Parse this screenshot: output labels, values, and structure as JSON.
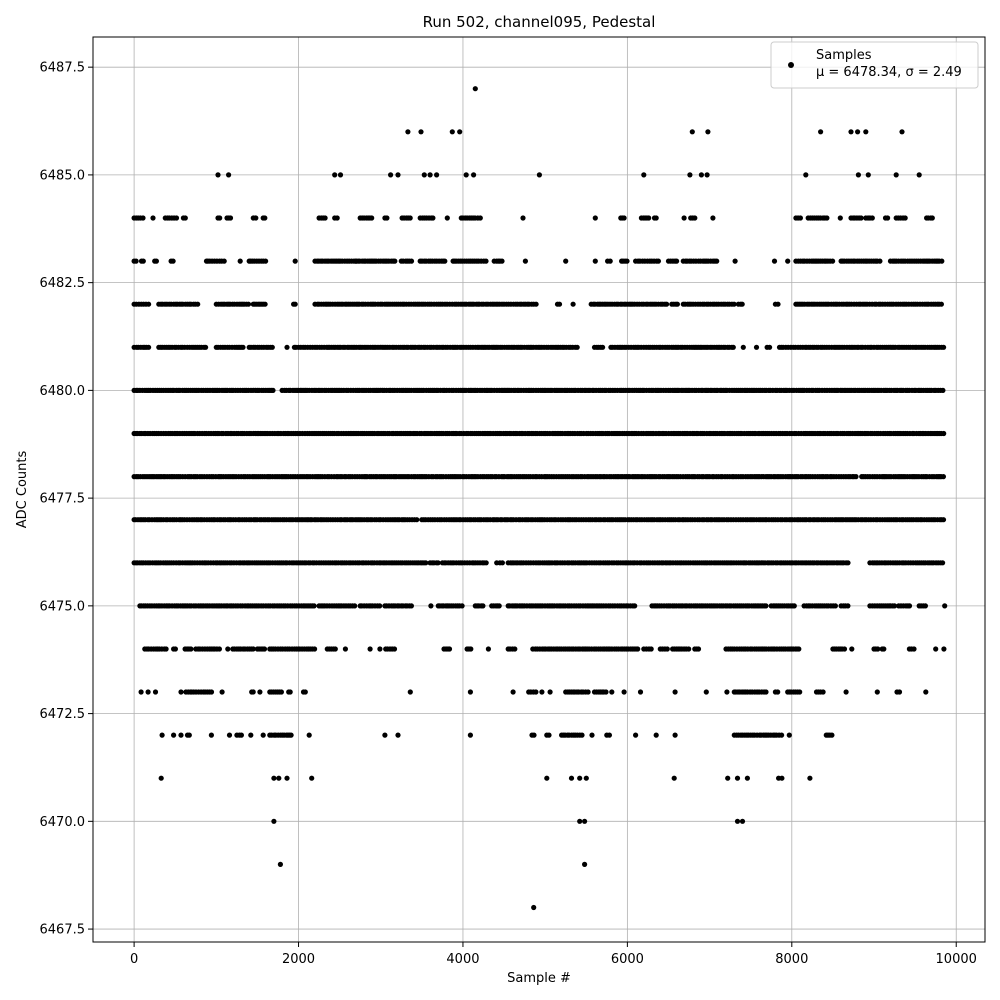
{
  "chart_data": {
    "type": "scatter",
    "title": "Run 502, channel095, Pedestal",
    "xlabel": "Sample #",
    "ylabel": "ADC Counts",
    "xlim": [
      -500,
      10350
    ],
    "ylim": [
      6467.2,
      6488.2
    ],
    "xticks": [
      0,
      2000,
      4000,
      6000,
      8000,
      10000
    ],
    "xtick_labels": [
      "0",
      "2000",
      "4000",
      "6000",
      "8000",
      "10000"
    ],
    "yticks": [
      6467.5,
      6470.0,
      6472.5,
      6475.0,
      6477.5,
      6480.0,
      6482.5,
      6485.0,
      6487.5
    ],
    "ytick_labels": [
      "6467.5",
      "6470.0",
      "6472.5",
      "6475.0",
      "6477.5",
      "6480.0",
      "6482.5",
      "6485.0",
      "6487.5"
    ],
    "grid": true,
    "legend": {
      "placement": "top-right",
      "entry_name": "Samples",
      "entry_stats": "μ = 6478.34, σ = 2.49"
    },
    "marker_color": "#000000",
    "sample_range": [
      0,
      9850
    ],
    "series": [
      {
        "levels": [
          6476,
          6477,
          6478,
          6479,
          6480
        ],
        "note_values": "dense continuous bands across full sample range"
      }
    ],
    "points_sparse": [
      [
        4150,
        6487
      ],
      [
        3330,
        6486
      ],
      [
        3490,
        6486
      ],
      [
        3870,
        6486
      ],
      [
        3960,
        6486
      ],
      [
        6790,
        6486
      ],
      [
        6980,
        6486
      ],
      [
        8350,
        6486
      ],
      [
        8720,
        6486
      ],
      [
        8800,
        6486
      ],
      [
        8900,
        6486
      ],
      [
        9340,
        6486
      ],
      [
        1020,
        6485
      ],
      [
        1150,
        6485
      ],
      [
        2440,
        6485
      ],
      [
        2510,
        6485
      ],
      [
        3120,
        6485
      ],
      [
        3210,
        6485
      ],
      [
        3530,
        6485
      ],
      [
        3600,
        6485
      ],
      [
        3680,
        6485
      ],
      [
        4040,
        6485
      ],
      [
        4130,
        6485
      ],
      [
        4930,
        6485
      ],
      [
        6200,
        6485
      ],
      [
        6760,
        6485
      ],
      [
        6900,
        6485
      ],
      [
        6970,
        6485
      ],
      [
        8170,
        6485
      ],
      [
        8810,
        6485
      ],
      [
        8930,
        6485
      ],
      [
        9270,
        6485
      ],
      [
        9550,
        6485
      ],
      [
        4860,
        6468
      ],
      [
        1780,
        6469
      ],
      [
        5480,
        6469
      ],
      [
        1700,
        6470
      ],
      [
        5420,
        6470
      ],
      [
        5480,
        6470
      ],
      [
        7340,
        6470
      ],
      [
        7400,
        6470
      ],
      [
        330,
        6471
      ],
      [
        1700,
        6471
      ],
      [
        1760,
        6471
      ],
      [
        1860,
        6471
      ],
      [
        2160,
        6471
      ],
      [
        5020,
        6471
      ],
      [
        5320,
        6471
      ],
      [
        5420,
        6471
      ],
      [
        5500,
        6471
      ],
      [
        6570,
        6471
      ],
      [
        7220,
        6471
      ],
      [
        7340,
        6471
      ],
      [
        7460,
        6471
      ],
      [
        7840,
        6471
      ],
      [
        7880,
        6471
      ],
      [
        8220,
        6471
      ]
    ],
    "band_levels": [
      {
        "y": 6484,
        "ranges": [
          [
            0,
            120
          ],
          [
            220,
            240
          ],
          [
            380,
            520
          ],
          [
            600,
            640
          ],
          [
            1020,
            1050
          ],
          [
            1130,
            1200
          ],
          [
            1450,
            1500
          ],
          [
            1570,
            1600
          ],
          [
            2250,
            2330
          ],
          [
            2440,
            2480
          ],
          [
            2750,
            2900
          ],
          [
            3050,
            3080
          ],
          [
            3260,
            3360
          ],
          [
            3480,
            3650
          ],
          [
            3800,
            3820
          ],
          [
            3980,
            4150
          ],
          [
            4180,
            4230
          ],
          [
            4720,
            4740
          ],
          [
            5600,
            5620
          ],
          [
            5920,
            5960
          ],
          [
            6170,
            6260
          ],
          [
            6330,
            6370
          ],
          [
            6680,
            6700
          ],
          [
            6770,
            6840
          ],
          [
            7030,
            7050
          ],
          [
            8050,
            8120
          ],
          [
            8200,
            8450
          ],
          [
            8580,
            8600
          ],
          [
            8720,
            8850
          ],
          [
            8900,
            8980
          ],
          [
            9140,
            9170
          ],
          [
            9270,
            9400
          ],
          [
            9640,
            9720
          ]
        ]
      },
      {
        "y": 6483,
        "ranges": [
          [
            0,
            30
          ],
          [
            90,
            120
          ],
          [
            250,
            280
          ],
          [
            450,
            480
          ],
          [
            880,
            1100
          ],
          [
            1280,
            1300
          ],
          [
            1400,
            1600
          ],
          [
            1950,
            1970
          ],
          [
            2200,
            2700
          ],
          [
            2700,
            3200
          ],
          [
            3250,
            3400
          ],
          [
            3480,
            3800
          ],
          [
            3880,
            4300
          ],
          [
            4380,
            4480
          ],
          [
            4750,
            4770
          ],
          [
            5240,
            5260
          ],
          [
            5600,
            5620
          ],
          [
            5760,
            5800
          ],
          [
            5930,
            6000
          ],
          [
            6100,
            6400
          ],
          [
            6500,
            6600
          ],
          [
            6680,
            7100
          ],
          [
            7300,
            7320
          ],
          [
            7780,
            7800
          ],
          [
            7940,
            7960
          ],
          [
            8050,
            8500
          ],
          [
            8600,
            9100
          ],
          [
            9200,
            9850
          ]
        ]
      },
      {
        "y": 6482,
        "ranges": [
          [
            0,
            200
          ],
          [
            300,
            800
          ],
          [
            1000,
            1400
          ],
          [
            1450,
            1600
          ],
          [
            1940,
            1970
          ],
          [
            2200,
            4900
          ],
          [
            5150,
            5200
          ],
          [
            5330,
            5350
          ],
          [
            5560,
            6500
          ],
          [
            6540,
            6620
          ],
          [
            6680,
            7300
          ],
          [
            7350,
            7420
          ],
          [
            7800,
            7850
          ],
          [
            8050,
            9850
          ]
        ]
      },
      {
        "y": 6481,
        "ranges": [
          [
            0,
            200
          ],
          [
            300,
            900
          ],
          [
            1000,
            1350
          ],
          [
            1400,
            1700
          ],
          [
            1850,
            1870
          ],
          [
            1950,
            5400
          ],
          [
            5600,
            5700
          ],
          [
            5800,
            7300
          ],
          [
            7400,
            7420
          ],
          [
            7560,
            7580
          ],
          [
            7700,
            7750
          ],
          [
            7850,
            9850
          ]
        ]
      },
      {
        "y": 6480,
        "ranges": [
          [
            0,
            1700
          ],
          [
            1800,
            9850
          ]
        ]
      },
      {
        "y": 6479,
        "ranges": [
          [
            0,
            9850
          ]
        ]
      },
      {
        "y": 6478,
        "ranges": [
          [
            0,
            8800
          ],
          [
            8850,
            9850
          ]
        ]
      },
      {
        "y": 6477,
        "ranges": [
          [
            0,
            3450
          ],
          [
            3500,
            9850
          ]
        ]
      },
      {
        "y": 6476,
        "ranges": [
          [
            0,
            3550
          ],
          [
            3600,
            3700
          ],
          [
            3750,
            4300
          ],
          [
            4400,
            4420
          ],
          [
            4450,
            4480
          ],
          [
            4550,
            8700
          ],
          [
            8950,
            9850
          ]
        ]
      },
      {
        "y": 6475,
        "ranges": [
          [
            70,
            2200
          ],
          [
            2250,
            2700
          ],
          [
            2750,
            3000
          ],
          [
            3050,
            3400
          ],
          [
            3600,
            3620
          ],
          [
            3700,
            4000
          ],
          [
            4150,
            4250
          ],
          [
            4350,
            4450
          ],
          [
            4550,
            6100
          ],
          [
            6300,
            7700
          ],
          [
            7750,
            8050
          ],
          [
            8150,
            8550
          ],
          [
            8600,
            8700
          ],
          [
            8950,
            9250
          ],
          [
            9300,
            9450
          ],
          [
            9550,
            9650
          ],
          [
            9850,
            9870
          ]
        ]
      },
      {
        "y": 6474,
        "ranges": [
          [
            130,
            400
          ],
          [
            480,
            520
          ],
          [
            620,
            700
          ],
          [
            750,
            1050
          ],
          [
            1130,
            1150
          ],
          [
            1200,
            1450
          ],
          [
            1500,
            1600
          ],
          [
            1650,
            2200
          ],
          [
            2350,
            2450
          ],
          [
            2560,
            2580
          ],
          [
            2860,
            2880
          ],
          [
            2980,
            3000
          ],
          [
            3060,
            3180
          ],
          [
            3770,
            3850
          ],
          [
            4050,
            4100
          ],
          [
            4300,
            4320
          ],
          [
            4550,
            4650
          ],
          [
            4850,
            6150
          ],
          [
            6200,
            6300
          ],
          [
            6400,
            6500
          ],
          [
            6550,
            6750
          ],
          [
            6820,
            6880
          ],
          [
            7200,
            8100
          ],
          [
            8500,
            8650
          ],
          [
            8720,
            8740
          ],
          [
            9000,
            9050
          ],
          [
            9100,
            9150
          ],
          [
            9430,
            9500
          ],
          [
            9740,
            9760
          ],
          [
            9840,
            9860
          ]
        ]
      },
      {
        "y": 6473,
        "ranges": [
          [
            80,
            90
          ],
          [
            160,
            180
          ],
          [
            250,
            270
          ],
          [
            560,
            580
          ],
          [
            630,
            700
          ],
          [
            700,
            960
          ],
          [
            1060,
            1080
          ],
          [
            1430,
            1460
          ],
          [
            1520,
            1540
          ],
          [
            1650,
            1800
          ],
          [
            1880,
            1920
          ],
          [
            2060,
            2110
          ],
          [
            3350,
            3370
          ],
          [
            4080,
            4100
          ],
          [
            4600,
            4620
          ],
          [
            4800,
            4900
          ],
          [
            4950,
            4970
          ],
          [
            5050,
            5070
          ],
          [
            5250,
            5550
          ],
          [
            5600,
            5750
          ],
          [
            5800,
            5820
          ],
          [
            5950,
            5970
          ],
          [
            6150,
            6170
          ],
          [
            6570,
            6590
          ],
          [
            6950,
            6970
          ],
          [
            7200,
            7220
          ],
          [
            7300,
            7700
          ],
          [
            7800,
            7850
          ],
          [
            7950,
            8100
          ],
          [
            8300,
            8400
          ],
          [
            8650,
            8670
          ],
          [
            9030,
            9050
          ],
          [
            9280,
            9320
          ],
          [
            9620,
            9640
          ]
        ]
      },
      {
        "y": 6472,
        "ranges": [
          [
            330,
            350
          ],
          [
            470,
            490
          ],
          [
            560,
            580
          ],
          [
            650,
            680
          ],
          [
            930,
            950
          ],
          [
            1150,
            1170
          ],
          [
            1250,
            1320
          ],
          [
            1410,
            1430
          ],
          [
            1560,
            1580
          ],
          [
            1650,
            1920
          ],
          [
            2120,
            2140
          ],
          [
            3040,
            3060
          ],
          [
            3200,
            3220
          ],
          [
            4080,
            4100
          ],
          [
            4840,
            4870
          ],
          [
            5020,
            5070
          ],
          [
            5200,
            5450
          ],
          [
            5570,
            5600
          ],
          [
            5750,
            5800
          ],
          [
            6090,
            6110
          ],
          [
            6340,
            6360
          ],
          [
            6570,
            6590
          ],
          [
            7300,
            7900
          ],
          [
            7960,
            7980
          ],
          [
            8420,
            8500
          ]
        ]
      }
    ]
  }
}
